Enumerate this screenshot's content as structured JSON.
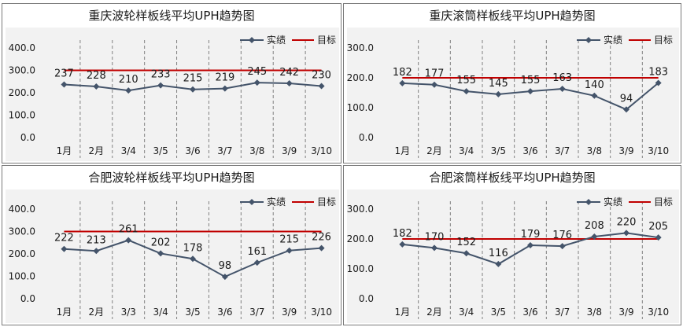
{
  "legend": {
    "actual": "实绩",
    "target": "目标"
  },
  "colors": {
    "actual": "#44546a",
    "target": "#c00000",
    "plot_bg": "#f2f2f2",
    "gridline": "#808080"
  },
  "chart_data": [
    {
      "type": "line",
      "title": "重庆波轮样板线平均UPH趋势图",
      "categories": [
        "1月",
        "2月",
        "3/4",
        "3/5",
        "3/6",
        "3/7",
        "3/8",
        "3/9",
        "3/10"
      ],
      "yticks": [
        "400.0",
        "300.0",
        "200.0",
        "100.0",
        "0.0"
      ],
      "ylim": [
        0,
        400
      ],
      "series": [
        {
          "name": "实绩",
          "values": [
            237,
            228,
            210,
            233,
            215,
            219,
            245,
            242,
            230
          ]
        },
        {
          "name": "目标",
          "values": [
            300,
            300,
            300,
            300,
            300,
            300,
            300,
            300,
            300
          ]
        }
      ],
      "legend_position": "top-right"
    },
    {
      "type": "line",
      "title": "重庆滚筒样板线平均UPH趋势图",
      "categories": [
        "1月",
        "2月",
        "3/4",
        "3/5",
        "3/6",
        "3/7",
        "3/8",
        "3/9",
        "3/10"
      ],
      "yticks": [
        "300.0",
        "200.0",
        "100.0",
        "0.0"
      ],
      "ylim": [
        0,
        300
      ],
      "series": [
        {
          "name": "实绩",
          "values": [
            182,
            177,
            155,
            145,
            155,
            163,
            140,
            94,
            183
          ]
        },
        {
          "name": "目标",
          "values": [
            200,
            200,
            200,
            200,
            200,
            200,
            200,
            200,
            200
          ]
        }
      ],
      "legend_position": "top-right"
    },
    {
      "type": "line",
      "title": "合肥波轮样板线平均UPH趋势图",
      "categories": [
        "1月",
        "2月",
        "3/3",
        "3/4",
        "3/5",
        "3/6",
        "3/7",
        "3/9",
        "3/10"
      ],
      "yticks": [
        "400.0",
        "300.0",
        "200.0",
        "100.0",
        "0.0"
      ],
      "ylim": [
        0,
        400
      ],
      "series": [
        {
          "name": "实绩",
          "values": [
            222,
            213,
            261,
            202,
            178,
            98,
            161,
            215,
            226
          ]
        },
        {
          "name": "目标",
          "values": [
            300,
            300,
            300,
            300,
            300,
            300,
            300,
            300,
            300
          ]
        }
      ],
      "legend_position": "top-right"
    },
    {
      "type": "line",
      "title": "合肥滚筒样板线平均UPH趋势图",
      "categories": [
        "1月",
        "2月",
        "3/4",
        "3/5",
        "3/6",
        "3/7",
        "3/8",
        "3/9",
        "3/10"
      ],
      "yticks": [
        "300.0",
        "200.0",
        "100.0",
        "0.0"
      ],
      "ylim": [
        0,
        300
      ],
      "series": [
        {
          "name": "实绩",
          "values": [
            182,
            170,
            152,
            116,
            179,
            176,
            208,
            220,
            205
          ]
        },
        {
          "name": "目标",
          "values": [
            200,
            200,
            200,
            200,
            200,
            200,
            200,
            200,
            200
          ]
        }
      ],
      "legend_position": "top-right"
    }
  ]
}
